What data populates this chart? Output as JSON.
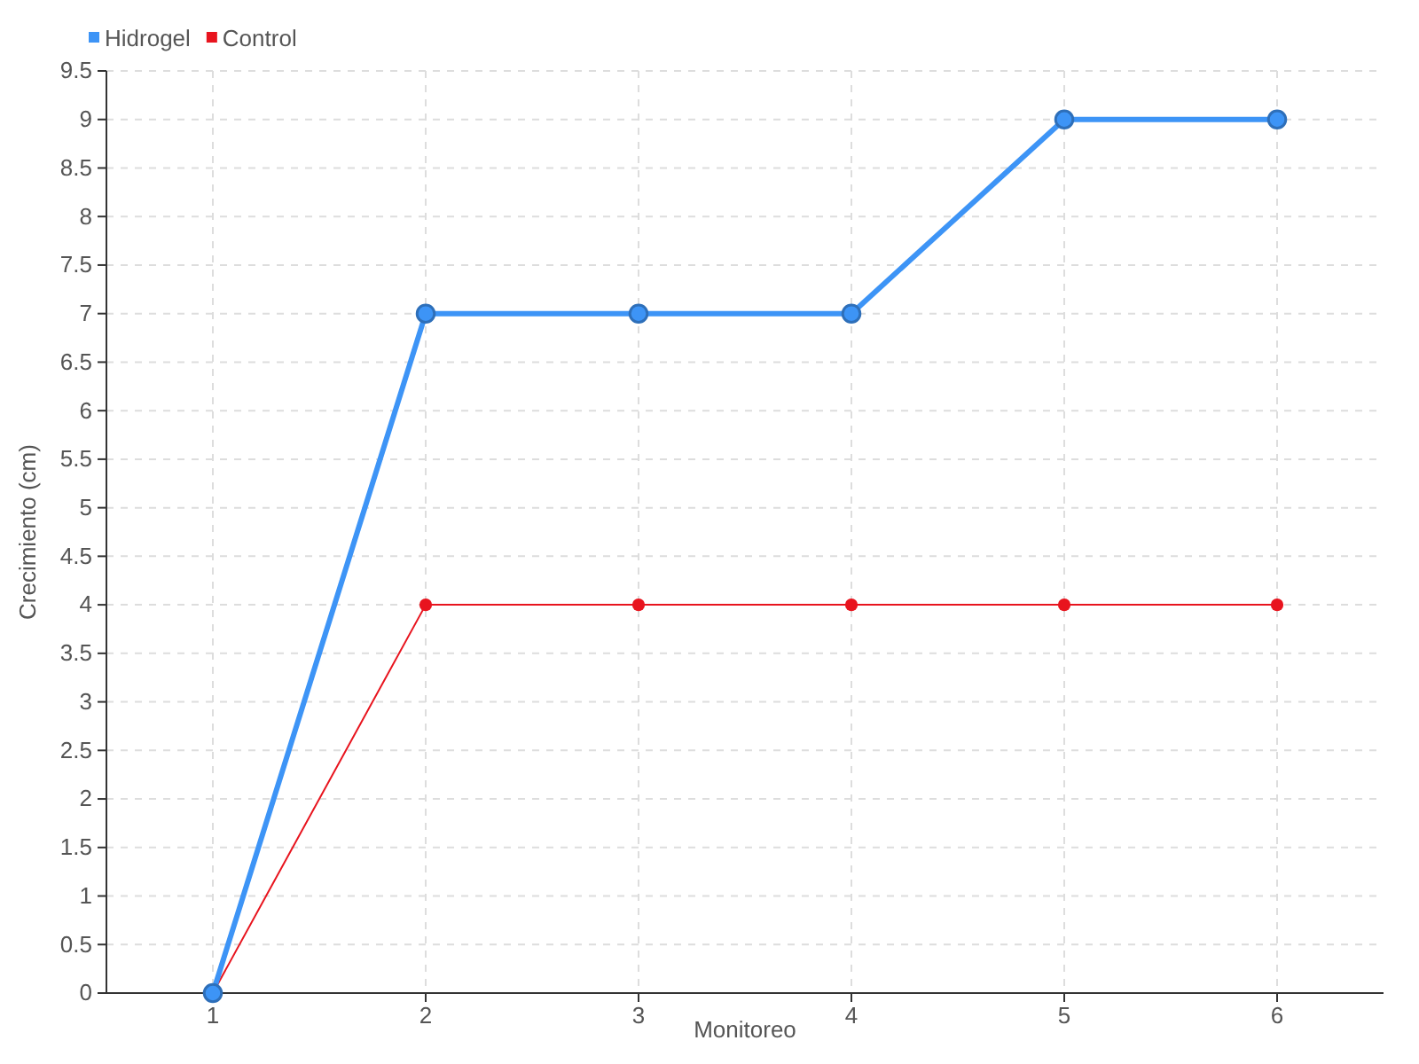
{
  "chart_data": {
    "type": "line",
    "xlabel": "Monitoreo",
    "ylabel": "Crecimiento (cm)",
    "x": [
      1,
      2,
      3,
      4,
      5,
      6
    ],
    "series": [
      {
        "name": "Hidrogel",
        "color": "#3d94f6",
        "values": [
          0,
          7,
          7,
          7,
          9,
          9
        ]
      },
      {
        "name": "Control",
        "color": "#e8141e",
        "values": [
          0,
          4,
          4,
          4,
          4,
          4
        ]
      }
    ],
    "xlim": [
      0.5,
      6.5
    ],
    "xticks": [
      1,
      2,
      3,
      4,
      5,
      6
    ],
    "ylim": [
      0,
      9.5
    ],
    "yticks": [
      0,
      0.5,
      1,
      1.5,
      2,
      2.5,
      3,
      3.5,
      4,
      4.5,
      5,
      5.5,
      6,
      6.5,
      7,
      7.5,
      8,
      8.5,
      9,
      9.5
    ],
    "grid": true,
    "legend": "top left",
    "marker": "circle",
    "line_style": "solid"
  }
}
